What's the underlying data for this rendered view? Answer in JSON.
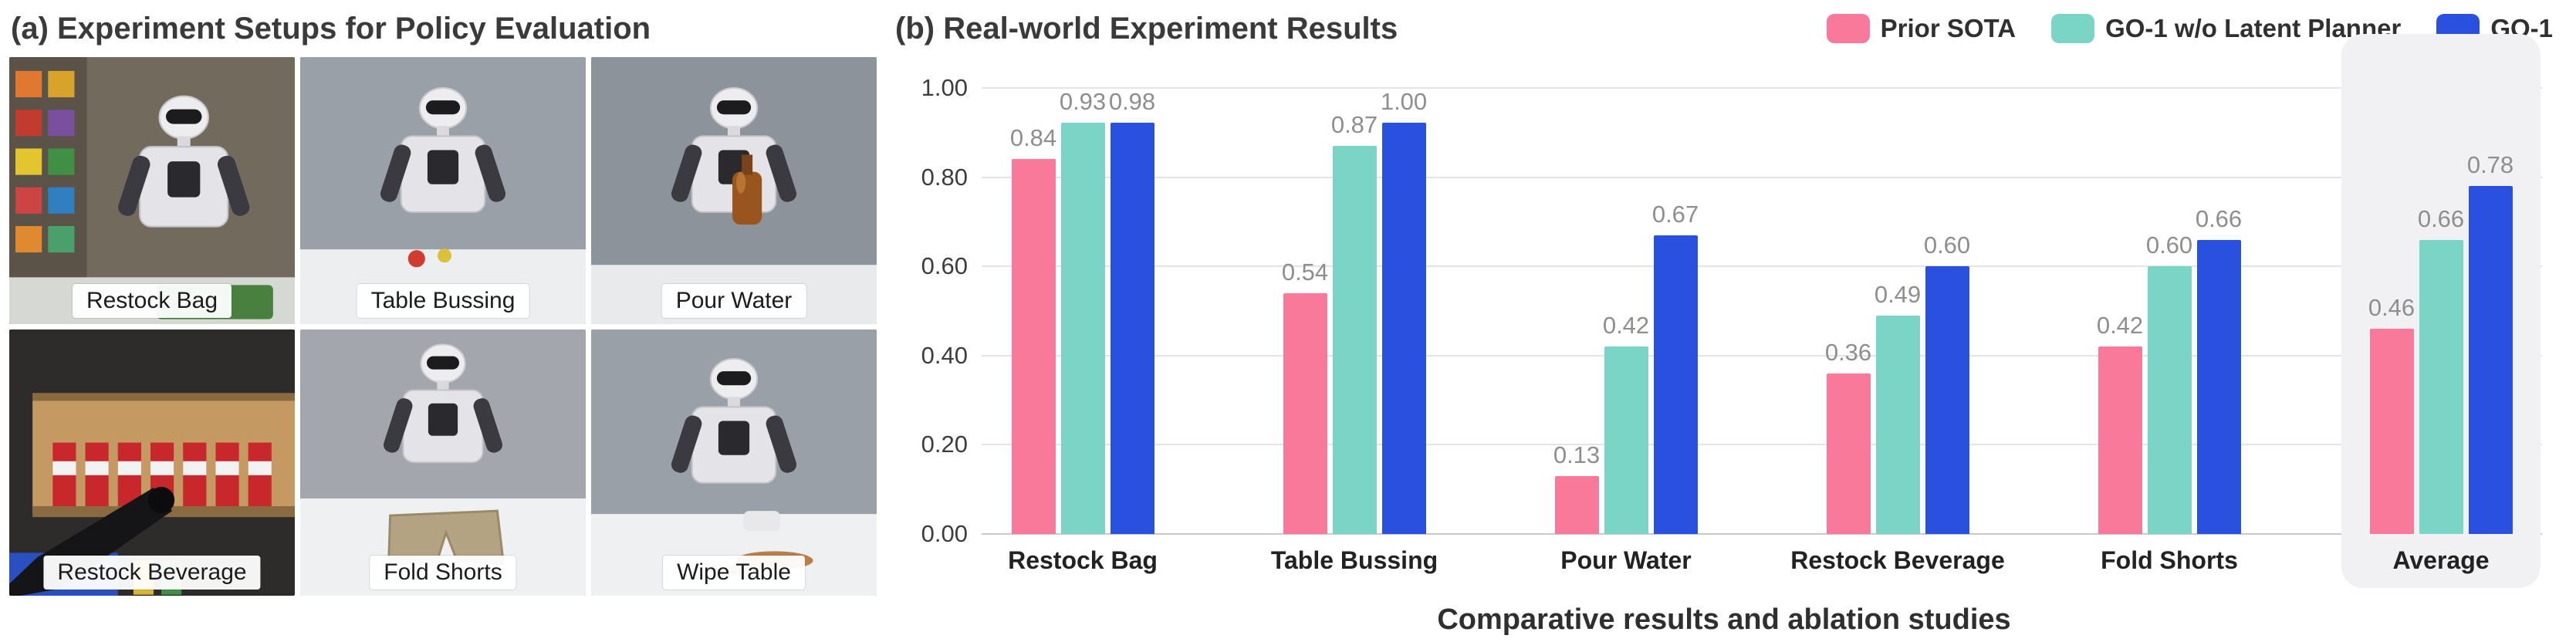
{
  "figure": {
    "panel_a": {
      "title": "(a) Experiment Setups for Policy Evaluation",
      "photos": [
        {
          "label": "Restock Bag"
        },
        {
          "label": "Table Bussing"
        },
        {
          "label": "Pour Water"
        },
        {
          "label": "Restock Beverage"
        },
        {
          "label": "Fold Shorts"
        },
        {
          "label": "Wipe Table"
        }
      ]
    },
    "panel_b": {
      "title": "(b) Real-world Experiment Results",
      "caption": "Comparative results and ablation studies"
    }
  },
  "chart_data": {
    "type": "bar",
    "title": "Real-world Experiment Results",
    "categories": [
      "Restock Bag",
      "Table Bussing",
      "Pour Water",
      "Restock Beverage",
      "Fold Shorts",
      "Average"
    ],
    "series": [
      {
        "name": "Prior SOTA",
        "color": "#F8799A",
        "values": [
          0.84,
          0.54,
          0.13,
          0.36,
          0.42,
          0.46
        ]
      },
      {
        "name": "GO-1 w/o Latent Planner",
        "color": "#7AD5C6",
        "values": [
          0.93,
          0.87,
          0.42,
          0.49,
          0.6,
          0.66
        ]
      },
      {
        "name": "GO-1",
        "color": "#2A50DF",
        "values": [
          0.98,
          1.0,
          0.67,
          0.6,
          0.66,
          0.78
        ]
      }
    ],
    "ylim": [
      0,
      1.0
    ],
    "yticks": [
      0.0,
      0.2,
      0.4,
      0.6,
      0.8,
      1.0
    ],
    "ytick_labels": [
      "0.00",
      "0.20",
      "0.40",
      "0.60",
      "0.80",
      "1.00"
    ],
    "grid": "horizontal",
    "legend_position": "top-right",
    "highlighted_category": "Average",
    "value_label_decimals": 2,
    "xlabel": "",
    "ylabel": ""
  }
}
